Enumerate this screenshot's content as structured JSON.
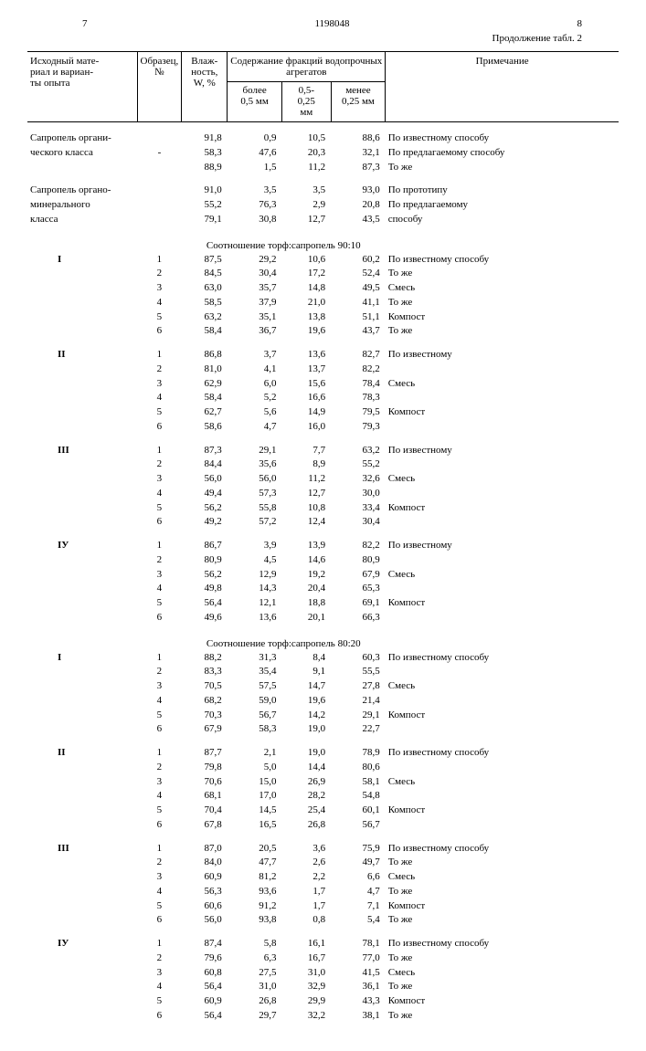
{
  "page_left": "7",
  "doc_number": "1198048",
  "page_right": "8",
  "continuation": "Продолжение табл. 2",
  "headers": {
    "col1": "Исходный мате-\nриал и вариан-\nты опыта",
    "col2": "Образец,\n№",
    "col3": "Влаж-\nность,\nW, %",
    "col_group": "Содержание фракций водопрочных\nагрегатов",
    "col4": "более\n0,5 мм",
    "col5": "0,5-\n0,25\nмм",
    "col6": "менее\n0,25 мм",
    "col7": "Примечание"
  },
  "ratio9010": "Соотношение торф:сапропель 90:10",
  "ratio8020": "Соотношение торф:сапропель 80:20",
  "groups": [
    {
      "name": "Сапропель органи-\nческого класса",
      "rows": [
        {
          "s": "",
          "w": "91,8",
          "a": "0,9",
          "b": "10,5",
          "c": "88,6",
          "n": "По известному способу"
        },
        {
          "s": "-",
          "w": "58,3",
          "a": "47,6",
          "b": "20,3",
          "c": "32,1",
          "n": "По предлагаемому способу"
        },
        {
          "s": "",
          "w": "88,9",
          "a": "1,5",
          "b": "11,2",
          "c": "87,3",
          "n": "То же"
        }
      ]
    },
    {
      "name": "Сапропель органо-\nминерального\nкласса",
      "rows": [
        {
          "s": "",
          "w": "91,0",
          "a": "3,5",
          "b": "3,5",
          "c": "93,0",
          "n": "По прототипу"
        },
        {
          "s": "",
          "w": "55,2",
          "a": "76,3",
          "b": "2,9",
          "c": "20,8",
          "n": "По предлагаемому"
        },
        {
          "s": "",
          "w": "79,1",
          "a": "30,8",
          "b": "12,7",
          "c": "43,5",
          "n": "способу"
        }
      ]
    }
  ],
  "blocksA": [
    {
      "id": "I",
      "rows": [
        {
          "s": "1",
          "w": "87,5",
          "a": "29,2",
          "b": "10,6",
          "c": "60,2",
          "n": "По известному способу"
        },
        {
          "s": "2",
          "w": "84,5",
          "a": "30,4",
          "b": "17,2",
          "c": "52,4",
          "n": "То же"
        },
        {
          "s": "3",
          "w": "63,0",
          "a": "35,7",
          "b": "14,8",
          "c": "49,5",
          "n": "Смесь"
        },
        {
          "s": "4",
          "w": "58,5",
          "a": "37,9",
          "b": "21,0",
          "c": "41,1",
          "n": "То же"
        },
        {
          "s": "5",
          "w": "63,2",
          "a": "35,1",
          "b": "13,8",
          "c": "51,1",
          "n": "Компост"
        },
        {
          "s": "6",
          "w": "58,4",
          "a": "36,7",
          "b": "19,6",
          "c": "43,7",
          "n": "То же"
        }
      ]
    },
    {
      "id": "II",
      "rows": [
        {
          "s": "1",
          "w": "86,8",
          "a": "3,7",
          "b": "13,6",
          "c": "82,7",
          "n": "По известному"
        },
        {
          "s": "2",
          "w": "81,0",
          "a": "4,1",
          "b": "13,7",
          "c": "82,2",
          "n": ""
        },
        {
          "s": "3",
          "w": "62,9",
          "a": "6,0",
          "b": "15,6",
          "c": "78,4",
          "n": "Смесь"
        },
        {
          "s": "4",
          "w": "58,4",
          "a": "5,2",
          "b": "16,6",
          "c": "78,3",
          "n": ""
        },
        {
          "s": "5",
          "w": "62,7",
          "a": "5,6",
          "b": "14,9",
          "c": "79,5",
          "n": "Компост"
        },
        {
          "s": "6",
          "w": "58,6",
          "a": "4,7",
          "b": "16,0",
          "c": "79,3",
          "n": ""
        }
      ]
    },
    {
      "id": "III",
      "rows": [
        {
          "s": "1",
          "w": "87,3",
          "a": "29,1",
          "b": "7,7",
          "c": "63,2",
          "n": "По известному"
        },
        {
          "s": "2",
          "w": "84,4",
          "a": "35,6",
          "b": "8,9",
          "c": "55,2",
          "n": ""
        },
        {
          "s": "3",
          "w": "56,0",
          "a": "56,0",
          "b": "11,2",
          "c": "32,6",
          "n": "Смесь"
        },
        {
          "s": "4",
          "w": "49,4",
          "a": "57,3",
          "b": "12,7",
          "c": "30,0",
          "n": ""
        },
        {
          "s": "5",
          "w": "56,2",
          "a": "55,8",
          "b": "10,8",
          "c": "33,4",
          "n": "Компост"
        },
        {
          "s": "6",
          "w": "49,2",
          "a": "57,2",
          "b": "12,4",
          "c": "30,4",
          "n": ""
        }
      ]
    },
    {
      "id": "IУ",
      "rows": [
        {
          "s": "1",
          "w": "86,7",
          "a": "3,9",
          "b": "13,9",
          "c": "82,2",
          "n": "По известному"
        },
        {
          "s": "2",
          "w": "80,9",
          "a": "4,5",
          "b": "14,6",
          "c": "80,9",
          "n": ""
        },
        {
          "s": "3",
          "w": "56,2",
          "a": "12,9",
          "b": "19,2",
          "c": "67,9",
          "n": "Смесь"
        },
        {
          "s": "4",
          "w": "49,8",
          "a": "14,3",
          "b": "20,4",
          "c": "65,3",
          "n": ""
        },
        {
          "s": "5",
          "w": "56,4",
          "a": "12,1",
          "b": "18,8",
          "c": "69,1",
          "n": "Компост"
        },
        {
          "s": "6",
          "w": "49,6",
          "a": "13,6",
          "b": "20,1",
          "c": "66,3",
          "n": ""
        }
      ]
    }
  ],
  "blocksB": [
    {
      "id": "I",
      "rows": [
        {
          "s": "1",
          "w": "88,2",
          "a": "31,3",
          "b": "8,4",
          "c": "60,3",
          "n": "По известному способу"
        },
        {
          "s": "2",
          "w": "83,3",
          "a": "35,4",
          "b": "9,1",
          "c": "55,5",
          "n": ""
        },
        {
          "s": "3",
          "w": "70,5",
          "a": "57,5",
          "b": "14,7",
          "c": "27,8",
          "n": "Смесь"
        },
        {
          "s": "4",
          "w": "68,2",
          "a": "59,0",
          "b": "19,6",
          "c": "21,4",
          "n": ""
        },
        {
          "s": "5",
          "w": "70,3",
          "a": "56,7",
          "b": "14,2",
          "c": "29,1",
          "n": "Компост"
        },
        {
          "s": "6",
          "w": "67,9",
          "a": "58,3",
          "b": "19,0",
          "c": "22,7",
          "n": ""
        }
      ]
    },
    {
      "id": "II",
      "rows": [
        {
          "s": "1",
          "w": "87,7",
          "a": "2,1",
          "b": "19,0",
          "c": "78,9",
          "n": "По известному способу"
        },
        {
          "s": "2",
          "w": "79,8",
          "a": "5,0",
          "b": "14,4",
          "c": "80,6",
          "n": ""
        },
        {
          "s": "3",
          "w": "70,6",
          "a": "15,0",
          "b": "26,9",
          "c": "58,1",
          "n": "Смесь"
        },
        {
          "s": "4",
          "w": "68,1",
          "a": "17,0",
          "b": "28,2",
          "c": "54,8",
          "n": ""
        },
        {
          "s": "5",
          "w": "70,4",
          "a": "14,5",
          "b": "25,4",
          "c": "60,1",
          "n": "Компост"
        },
        {
          "s": "6",
          "w": "67,8",
          "a": "16,5",
          "b": "26,8",
          "c": "56,7",
          "n": ""
        }
      ]
    },
    {
      "id": "III",
      "rows": [
        {
          "s": "1",
          "w": "87,0",
          "a": "20,5",
          "b": "3,6",
          "c": "75,9",
          "n": "По известному способу"
        },
        {
          "s": "2",
          "w": "84,0",
          "a": "47,7",
          "b": "2,6",
          "c": "49,7",
          "n": "То же"
        },
        {
          "s": "3",
          "w": "60,9",
          "a": "81,2",
          "b": "2,2",
          "c": "6,6",
          "n": "Смесь"
        },
        {
          "s": "4",
          "w": "56,3",
          "a": "93,6",
          "b": "1,7",
          "c": "4,7",
          "n": "То же"
        },
        {
          "s": "5",
          "w": "60,6",
          "a": "91,2",
          "b": "1,7",
          "c": "7,1",
          "n": "Компост"
        },
        {
          "s": "6",
          "w": "56,0",
          "a": "93,8",
          "b": "0,8",
          "c": "5,4",
          "n": "То же"
        }
      ]
    },
    {
      "id": "IУ",
      "rows": [
        {
          "s": "1",
          "w": "87,4",
          "a": "5,8",
          "b": "16,1",
          "c": "78,1",
          "n": "По известному способу"
        },
        {
          "s": "2",
          "w": "79,6",
          "a": "6,3",
          "b": "16,7",
          "c": "77,0",
          "n": "То же"
        },
        {
          "s": "3",
          "w": "60,8",
          "a": "27,5",
          "b": "31,0",
          "c": "41,5",
          "n": "Смесь"
        },
        {
          "s": "4",
          "w": "56,4",
          "a": "31,0",
          "b": "32,9",
          "c": "36,1",
          "n": "То же"
        },
        {
          "s": "5",
          "w": "60,9",
          "a": "26,8",
          "b": "29,9",
          "c": "43,3",
          "n": "Компост"
        },
        {
          "s": "6",
          "w": "56,4",
          "a": "29,7",
          "b": "32,2",
          "c": "38,1",
          "n": "То же"
        }
      ]
    }
  ]
}
